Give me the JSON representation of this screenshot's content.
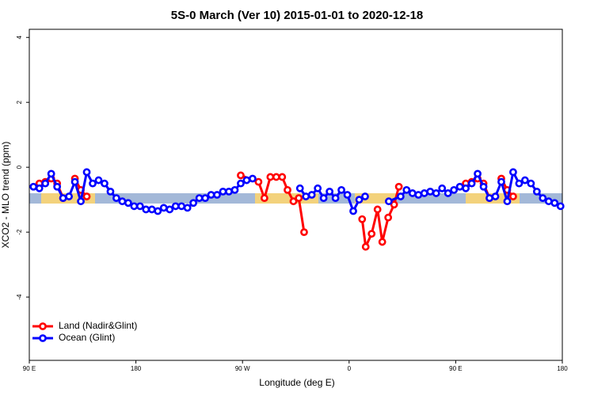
{
  "chart_data": {
    "type": "line",
    "title": "5S-0 March (Ver 10)   2015-01-01 to 2020-12-18",
    "x_label": "Longitude (deg E)",
    "y_label": "XCO2 - MLO trend (ppm)",
    "xlim": [
      90,
      540
    ],
    "ylim": [
      -5.95,
      4.25
    ],
    "xticks": [
      {
        "value": 90,
        "label": "90 E"
      },
      {
        "value": 180,
        "label": "180"
      },
      {
        "value": 270,
        "label": "90 W"
      },
      {
        "value": 360,
        "label": "0"
      },
      {
        "value": 450,
        "label": "90 E"
      },
      {
        "value": 540,
        "label": "180"
      }
    ],
    "yticks": [
      -4,
      -2,
      0,
      2,
      4
    ],
    "legend": "bottom-left",
    "series": [
      {
        "name": "Land (Nadir&Glint)",
        "color": "#ff0000",
        "x": [
          98.5,
          103.5,
          108.5,
          113.5,
          118.5,
          null,
          128.5,
          133.5,
          138.5,
          null,
          268.5,
          283.5,
          288.5,
          293.5,
          298.5,
          303.5,
          308,
          313,
          317.5,
          322,
          null,
          371,
          374,
          379,
          384,
          388,
          393,
          398,
          402,
          null,
          458.5,
          463.5,
          468.5,
          473.5,
          478.5,
          null,
          488.5,
          493.5,
          498.5
        ],
        "values": [
          -0.5,
          -0.45,
          -0.35,
          -0.5,
          -0.95,
          null,
          -0.35,
          -0.7,
          -0.9,
          null,
          -0.25,
          -0.45,
          -0.95,
          -0.3,
          -0.3,
          -0.3,
          -0.7,
          -1.05,
          -0.95,
          -2.0,
          null,
          -1.6,
          -2.45,
          -2.05,
          -1.3,
          -2.3,
          -1.55,
          -1.15,
          -0.6,
          null,
          -0.5,
          -0.45,
          -0.35,
          -0.5,
          -0.95,
          null,
          -0.35,
          -0.7,
          -0.9
        ]
      },
      {
        "name": "Ocean (Glint)",
        "color": "#0000ff",
        "x": [
          93.5,
          98.5,
          103.5,
          108.5,
          113.5,
          118.5,
          123.5,
          128.5,
          133.5,
          138.5,
          143.5,
          148.5,
          153.5,
          158.5,
          163.5,
          168.5,
          173.5,
          178.5,
          183.5,
          188.5,
          193.5,
          198.5,
          203.5,
          208.5,
          213.5,
          218.5,
          223.5,
          228.5,
          233.5,
          238.5,
          243.5,
          248.5,
          253.5,
          258.5,
          263.5,
          268.5,
          273.5,
          278.5,
          null,
          318.5,
          323.5,
          328.5,
          333.5,
          338.5,
          343.5,
          348.5,
          353.5,
          358.5,
          363.5,
          368.5,
          373.5,
          null,
          393.5,
          403.5,
          408.5,
          413.5,
          418.5,
          423.5,
          428.5,
          433.5,
          438.5,
          443.5,
          448.5,
          453.5,
          458.5,
          463.5,
          468.5,
          473.5,
          478.5,
          483.5,
          488.5,
          493.5,
          498.5,
          503.5,
          508.5,
          513.5,
          518.5,
          523.5,
          528.5,
          533.5,
          538.5
        ],
        "values": [
          -0.6,
          -0.65,
          -0.5,
          -0.2,
          -0.6,
          -0.95,
          -0.9,
          -0.45,
          -1.05,
          -0.15,
          -0.5,
          -0.4,
          -0.5,
          -0.75,
          -0.95,
          -1.05,
          -1.1,
          -1.2,
          -1.2,
          -1.3,
          -1.3,
          -1.35,
          -1.25,
          -1.3,
          -1.2,
          -1.2,
          -1.25,
          -1.1,
          -0.95,
          -0.95,
          -0.85,
          -0.85,
          -0.75,
          -0.75,
          -0.7,
          -0.5,
          -0.4,
          -0.35,
          null,
          -0.65,
          -0.9,
          -0.85,
          -0.65,
          -0.95,
          -0.75,
          -0.95,
          -0.7,
          -0.85,
          -1.35,
          -1.0,
          -0.9,
          null,
          -1.05,
          -0.9,
          -0.7,
          -0.8,
          -0.85,
          -0.8,
          -0.75,
          -0.8,
          -0.65,
          -0.8,
          -0.7,
          -0.6,
          -0.65,
          -0.5,
          -0.2,
          -0.6,
          -0.95,
          -0.9,
          -0.45,
          -1.05,
          -0.15,
          -0.5,
          -0.4,
          -0.5,
          -0.75,
          -0.95,
          -1.05,
          -1.1,
          -1.2
        ]
      }
    ]
  }
}
